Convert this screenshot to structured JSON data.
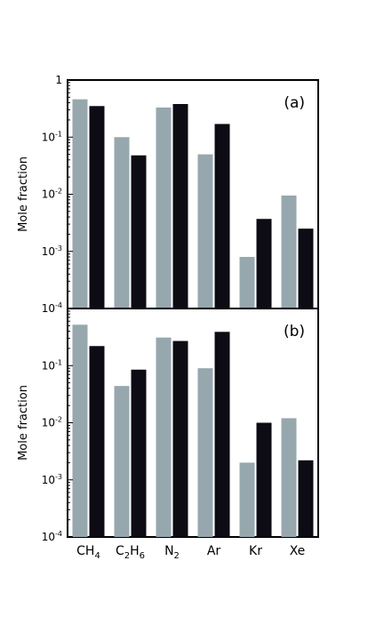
{
  "chart_data": [
    {
      "type": "bar",
      "panel_label": "(a)",
      "ylabel": "Mole fraction",
      "yscale": "log",
      "ylim": [
        0.0001,
        1
      ],
      "categories": [
        "CH4",
        "C2H6",
        "N2",
        "Ar",
        "Kr",
        "Xe"
      ],
      "series": [
        {
          "color": "#97a7ae",
          "values": [
            0.46,
            0.1,
            0.33,
            0.05,
            0.0008,
            0.0095
          ]
        },
        {
          "color": "#0d0c14",
          "values": [
            0.35,
            0.048,
            0.38,
            0.17,
            0.0037,
            0.0025
          ]
        }
      ],
      "yticks": [
        {
          "value": 0.0001,
          "base": "10",
          "exp": "-4"
        },
        {
          "value": 0.001,
          "base": "10",
          "exp": "-3"
        },
        {
          "value": 0.01,
          "base": "10",
          "exp": "-2"
        },
        {
          "value": 0.1,
          "base": "10",
          "exp": "-1"
        },
        {
          "value": 1,
          "base": "1",
          "exp": ""
        }
      ]
    },
    {
      "type": "bar",
      "panel_label": "(b)",
      "ylabel": "Mole fraction",
      "yscale": "log",
      "ylim": [
        0.0001,
        1
      ],
      "categories": [
        "CH4",
        "C2H6",
        "N2",
        "Ar",
        "Kr",
        "Xe"
      ],
      "series": [
        {
          "color": "#97a7ae",
          "values": [
            0.52,
            0.044,
            0.31,
            0.09,
            0.002,
            0.012
          ]
        },
        {
          "color": "#0d0c14",
          "values": [
            0.22,
            0.085,
            0.27,
            0.39,
            0.01,
            0.0022
          ]
        }
      ],
      "yticks": [
        {
          "value": 0.0001,
          "base": "10",
          "exp": "-4"
        },
        {
          "value": 0.001,
          "base": "10",
          "exp": "-3"
        },
        {
          "value": 0.01,
          "base": "10",
          "exp": "-2"
        },
        {
          "value": 0.1,
          "base": "10",
          "exp": "-1"
        }
      ]
    }
  ],
  "x_tick_labels": [
    {
      "main": "CH",
      "sub": "4",
      "tail": ""
    },
    {
      "main": "C",
      "sub": "2",
      "tail": "H",
      "sub2": "6"
    },
    {
      "main": "N",
      "sub": "2",
      "tail": ""
    },
    {
      "main": "Ar",
      "sub": "",
      "tail": ""
    },
    {
      "main": "Kr",
      "sub": "",
      "tail": ""
    },
    {
      "main": "Xe",
      "sub": "",
      "tail": ""
    }
  ]
}
